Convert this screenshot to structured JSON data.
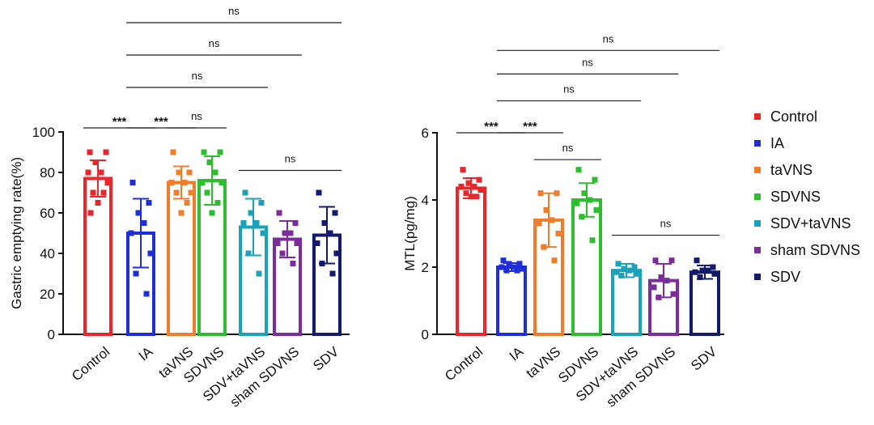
{
  "colors": {
    "Control": "#e8262b",
    "IA": "#1f2fd8",
    "taVNS": "#f07d2b",
    "SDVNS": "#2ebd2e",
    "SDV+taVNS": "#1aa3b8",
    "sham SDVNS": "#7b2d9a",
    "SDV": "#141a6b"
  },
  "legend": [
    "Control",
    "IA",
    "taVNS",
    "SDVNS",
    "SDV+taVNS",
    "sham SDVNS",
    "SDV"
  ],
  "chart_data": [
    {
      "type": "bar",
      "ylabel": "Gastric emptying rate(%)",
      "ylim": [
        0,
        100
      ],
      "yticks": [
        0,
        20,
        40,
        60,
        80,
        100
      ],
      "categories": [
        "Control",
        "IA",
        "taVNS",
        "SDVNS",
        "SDV+taVNS",
        "sham SDVNS",
        "SDV"
      ],
      "values": [
        77,
        50,
        75,
        76,
        53,
        47,
        49
      ],
      "errors": [
        9,
        17,
        8,
        12,
        14,
        9,
        14
      ],
      "points": [
        [
          90,
          90,
          85,
          80,
          80,
          75,
          70,
          70,
          65,
          60
        ],
        [
          75,
          65,
          60,
          55,
          50,
          40,
          30,
          20
        ],
        [
          90,
          80,
          80,
          75,
          75,
          70,
          70,
          65,
          60
        ],
        [
          90,
          90,
          85,
          80,
          75,
          75,
          70,
          65,
          60
        ],
        [
          70,
          65,
          60,
          55,
          55,
          50,
          40,
          30
        ],
        [
          60,
          55,
          50,
          50,
          45,
          45,
          40,
          35
        ],
        [
          70,
          60,
          55,
          50,
          45,
          40,
          35,
          30
        ]
      ],
      "significance": [
        {
          "from": 0,
          "to": 1,
          "label": "***",
          "level": 102
        },
        {
          "from": 1,
          "to": 2,
          "label": "***",
          "level": 102
        },
        {
          "from": 2,
          "to": 3,
          "label": "ns",
          "level": 102
        },
        {
          "from": 4,
          "to": 6,
          "label": "ns",
          "level": 81
        },
        {
          "from": 1,
          "to": 4,
          "label": "ns",
          "level": 122
        },
        {
          "from": 1,
          "to": 5,
          "label": "ns",
          "level": 138
        },
        {
          "from": 1,
          "to": 6,
          "label": "ns",
          "level": 154
        }
      ]
    },
    {
      "type": "bar",
      "ylabel": "MTL(pg/mg)",
      "ylim": [
        0,
        6
      ],
      "yticks": [
        0,
        2,
        4,
        6
      ],
      "categories": [
        "Control",
        "IA",
        "taVNS",
        "SDVNS",
        "SDV+taVNS",
        "sham SDVNS",
        "SDV"
      ],
      "values": [
        4.35,
        2.0,
        3.4,
        4.0,
        1.9,
        1.6,
        1.85
      ],
      "errors": [
        0.3,
        0.12,
        0.8,
        0.5,
        0.2,
        0.5,
        0.2
      ],
      "points": [
        [
          4.9,
          4.6,
          4.5,
          4.4,
          4.4,
          4.3,
          4.2,
          4.1,
          4.1
        ],
        [
          2.2,
          2.1,
          2.1,
          2.0,
          2.0,
          1.95,
          1.9,
          1.9
        ],
        [
          4.2,
          4.2,
          3.7,
          3.4,
          3.3,
          3.0,
          2.6,
          2.2
        ],
        [
          4.9,
          4.6,
          4.2,
          4.0,
          3.9,
          3.7,
          3.5,
          2.8
        ],
        [
          2.1,
          2.0,
          1.95,
          1.9,
          1.85,
          1.8,
          1.75
        ],
        [
          2.2,
          2.2,
          1.7,
          1.6,
          1.4,
          1.2,
          1.1
        ],
        [
          2.2,
          2.0,
          1.9,
          1.9,
          1.85,
          1.8,
          1.7
        ]
      ],
      "significance": [
        {
          "from": 0,
          "to": 1,
          "label": "***",
          "level": 6.0
        },
        {
          "from": 1,
          "to": 2,
          "label": "***",
          "level": 6.0
        },
        {
          "from": 2,
          "to": 3,
          "label": "ns",
          "level": 5.2
        },
        {
          "from": 4,
          "to": 6,
          "label": "ns",
          "level": 2.95
        },
        {
          "from": 1,
          "to": 4,
          "label": "ns",
          "level": 6.95
        },
        {
          "from": 1,
          "to": 5,
          "label": "ns",
          "level": 7.75
        },
        {
          "from": 1,
          "to": 6,
          "label": "ns",
          "level": 8.45
        }
      ]
    }
  ]
}
